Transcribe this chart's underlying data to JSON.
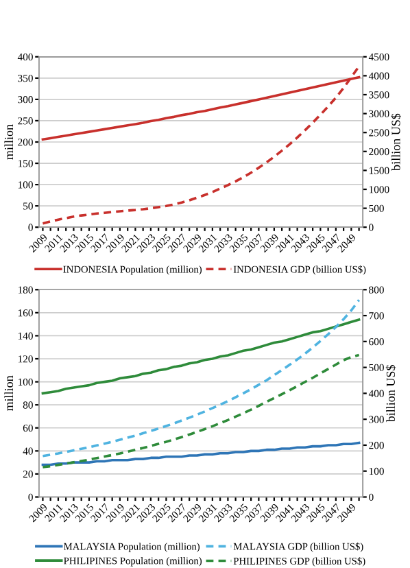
{
  "chart_data": [
    {
      "type": "line",
      "categories": [
        "2009",
        null,
        "2011",
        null,
        "2013",
        null,
        "2015",
        null,
        "2017",
        null,
        "2019",
        null,
        "2021",
        null,
        "2023",
        null,
        "2025",
        null,
        "2027",
        null,
        "2029",
        null,
        "2031",
        null,
        "2033",
        null,
        "2035",
        null,
        "2037",
        null,
        "2039",
        null,
        "2041",
        null,
        "2043",
        null,
        "2045",
        null,
        "2047",
        null,
        "2049",
        null
      ],
      "ylabel": "million",
      "y2label": "billion US$",
      "ylim": [
        0,
        400
      ],
      "yticks": [
        0,
        50,
        100,
        150,
        200,
        250,
        300,
        350,
        400
      ],
      "y2lim": [
        0,
        4500
      ],
      "y2ticks": [
        0,
        500,
        1000,
        1500,
        2000,
        2500,
        3000,
        3500,
        4000,
        4500
      ],
      "grid": "y",
      "legend": "bottom",
      "series": [
        {
          "name": "INDONESIA Population (million)",
          "color": "#c8302c",
          "line_style": "solid",
          "values": [
            206,
            209,
            212,
            215,
            218,
            221,
            224,
            227,
            230,
            233,
            236,
            239,
            242,
            245,
            249,
            252,
            256,
            259,
            263,
            266,
            270,
            273,
            277,
            281,
            284,
            288,
            292,
            296,
            300,
            304,
            308,
            312,
            316,
            320,
            324,
            328,
            332,
            336,
            340,
            344,
            348,
            352
          ]
        },
        {
          "name": "INDONESIA GDP (billion US$)",
          "color": "#c8302c",
          "line_style": "dashed",
          "axis": "y2",
          "values": [
            100,
            150,
            200,
            240,
            280,
            310,
            335,
            360,
            380,
            400,
            420,
            440,
            455,
            475,
            500,
            530,
            560,
            600,
            650,
            710,
            780,
            850,
            930,
            1020,
            1110,
            1210,
            1320,
            1440,
            1570,
            1710,
            1860,
            2020,
            2190,
            2370,
            2560,
            2760,
            2970,
            3190,
            3420,
            3680,
            3960,
            4250
          ]
        }
      ]
    },
    {
      "type": "line",
      "categories": [
        "2009",
        null,
        "2011",
        null,
        "2013",
        null,
        "2015",
        null,
        "2017",
        null,
        "2019",
        null,
        "2021",
        null,
        "2023",
        null,
        "2025",
        null,
        "2027",
        null,
        "2029",
        null,
        "2031",
        null,
        "2033",
        null,
        "2035",
        null,
        "2037",
        null,
        "2039",
        null,
        "2041",
        null,
        "2043",
        null,
        "2045",
        null,
        "2047",
        null,
        "2049",
        null
      ],
      "ylabel": "million",
      "y2label": "billion US$",
      "ylim": [
        0,
        180
      ],
      "yticks": [
        0,
        20,
        40,
        60,
        80,
        100,
        120,
        140,
        160,
        180
      ],
      "y2lim": [
        0,
        800
      ],
      "y2ticks": [
        0,
        100,
        200,
        300,
        400,
        500,
        600,
        700,
        800
      ],
      "grid": "y",
      "legend": "bottom",
      "series": [
        {
          "name": "MALAYSIA Population (million)",
          "color": "#2e75b6",
          "line_style": "solid",
          "values": [
            28,
            28,
            29,
            29,
            30,
            30,
            30,
            31,
            31,
            32,
            32,
            32,
            33,
            33,
            34,
            34,
            35,
            35,
            35,
            36,
            36,
            37,
            37,
            38,
            38,
            39,
            39,
            40,
            40,
            41,
            41,
            42,
            42,
            43,
            43,
            44,
            44,
            45,
            45,
            46,
            46,
            47
          ]
        },
        {
          "name": "PHILIPINES Population (million)",
          "color": "#2e8b3a",
          "line_style": "solid",
          "values": [
            90,
            91,
            92,
            94,
            95,
            96,
            97,
            99,
            100,
            101,
            103,
            104,
            105,
            107,
            108,
            110,
            111,
            113,
            114,
            116,
            117,
            119,
            120,
            122,
            123,
            125,
            127,
            128,
            130,
            132,
            134,
            135,
            137,
            139,
            141,
            143,
            144,
            146,
            148,
            150,
            152,
            154
          ]
        },
        {
          "name": "MALAYSIA GDP (billion US$)",
          "color": "#4fb3e0",
          "line_style": "dashed",
          "axis": "y2",
          "values": [
            158,
            163,
            168,
            174,
            180,
            186,
            192,
            199,
            206,
            213,
            221,
            229,
            237,
            246,
            255,
            264,
            274,
            284,
            295,
            306,
            318,
            330,
            343,
            356,
            370,
            385,
            400,
            416,
            433,
            450,
            470,
            490,
            510,
            531,
            553,
            577,
            602,
            628,
            656,
            686,
            720,
            760
          ]
        },
        {
          "name": "PHILIPINES GDP (billion US$)",
          "color": "#2e8b3a",
          "line_style": "dashed",
          "axis": "y2",
          "values": [
            115,
            119,
            124,
            129,
            134,
            139,
            144,
            150,
            156,
            162,
            168,
            175,
            182,
            189,
            197,
            205,
            213,
            222,
            231,
            241,
            251,
            262,
            273,
            285,
            297,
            310,
            323,
            337,
            352,
            367,
            382,
            397,
            412,
            428,
            444,
            460,
            477,
            494,
            511,
            528,
            540,
            548
          ]
        }
      ]
    }
  ]
}
